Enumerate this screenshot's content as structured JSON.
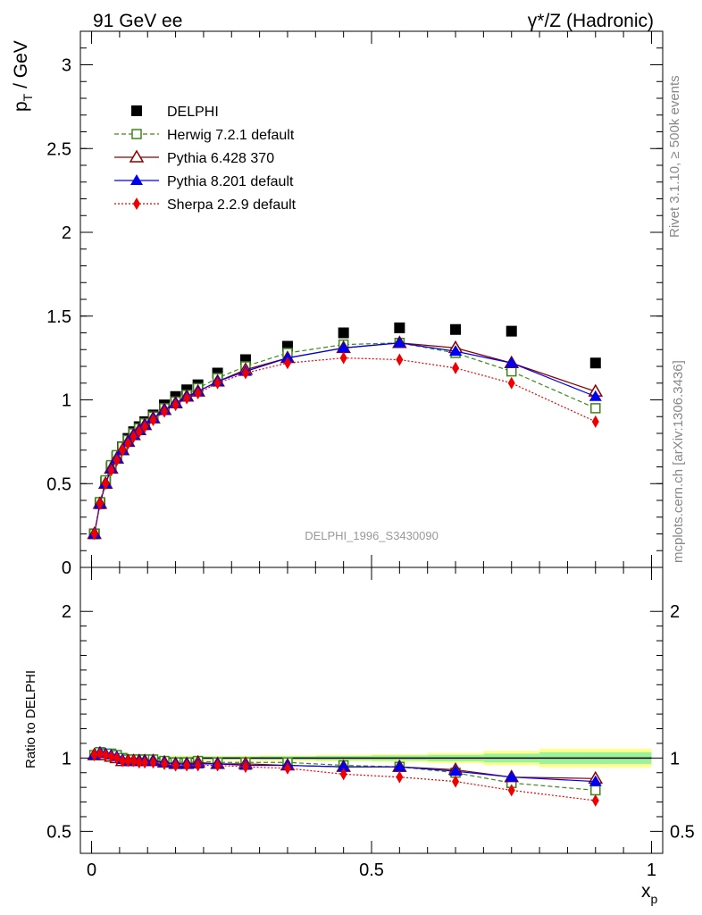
{
  "header": {
    "left": "91 GeV ee",
    "right": "γ*/Z (Hadronic)"
  },
  "side_labels": {
    "rivet": "Rivet 3.1.10, ≥ 500k events",
    "mcplots": "mcplots.cern.ch [arXiv:1306.3436]"
  },
  "analysis_id": "DELPHI_1996_S3430090",
  "chart_data": [
    {
      "type": "scatter",
      "panel": "main",
      "ylabel": "p_T / GeV",
      "xlabel": "x_p",
      "xlim": [
        -0.02,
        1.02
      ],
      "ylim": [
        0,
        3.2
      ],
      "yticks": [
        "0",
        "0.5",
        "1",
        "1.5",
        "2",
        "2.5",
        "3"
      ],
      "xticks": [
        "0",
        "0.5",
        "1"
      ],
      "legend_position": "top-left",
      "x": [
        0.005,
        0.015,
        0.025,
        0.035,
        0.045,
        0.055,
        0.065,
        0.075,
        0.085,
        0.095,
        0.11,
        0.13,
        0.15,
        0.17,
        0.19,
        0.225,
        0.275,
        0.35,
        0.45,
        0.55,
        0.65,
        0.75,
        0.9
      ],
      "series": [
        {
          "name": "DELPHI",
          "color": "#000000",
          "marker": "square-filled",
          "line": "none",
          "values": [
            0.2,
            0.38,
            0.51,
            0.6,
            0.66,
            0.72,
            0.77,
            0.81,
            0.84,
            0.87,
            0.91,
            0.97,
            1.02,
            1.06,
            1.09,
            1.16,
            1.24,
            1.32,
            1.4,
            1.43,
            1.42,
            1.41,
            1.22
          ]
        },
        {
          "name": "Herwig 7.2.1 default",
          "color": "#3a8a17",
          "marker": "square-open",
          "line": "dashed",
          "values": [
            0.2,
            0.39,
            0.52,
            0.61,
            0.67,
            0.72,
            0.76,
            0.8,
            0.83,
            0.86,
            0.9,
            0.95,
            0.99,
            1.03,
            1.07,
            1.13,
            1.2,
            1.28,
            1.33,
            1.34,
            1.28,
            1.17,
            0.95
          ]
        },
        {
          "name": "Pythia 6.428 370",
          "color": "#8b0000",
          "marker": "triangle-open",
          "line": "solid",
          "values": [
            0.2,
            0.38,
            0.5,
            0.59,
            0.65,
            0.7,
            0.75,
            0.79,
            0.82,
            0.85,
            0.89,
            0.94,
            0.98,
            1.02,
            1.05,
            1.11,
            1.18,
            1.25,
            1.31,
            1.34,
            1.31,
            1.22,
            1.05
          ]
        },
        {
          "name": "Pythia 8.201 default",
          "color": "#0000ee",
          "marker": "triangle-filled",
          "line": "solid",
          "values": [
            0.2,
            0.38,
            0.5,
            0.59,
            0.65,
            0.7,
            0.75,
            0.79,
            0.82,
            0.85,
            0.89,
            0.94,
            0.98,
            1.02,
            1.05,
            1.11,
            1.17,
            1.25,
            1.31,
            1.34,
            1.29,
            1.22,
            1.02
          ]
        },
        {
          "name": "Sherpa 2.2.9 default",
          "color": "#ee0000",
          "marker": "diamond-filled",
          "line": "dotted",
          "values": [
            0.2,
            0.38,
            0.5,
            0.58,
            0.64,
            0.7,
            0.74,
            0.78,
            0.81,
            0.84,
            0.88,
            0.93,
            0.97,
            1.01,
            1.04,
            1.1,
            1.16,
            1.22,
            1.25,
            1.24,
            1.19,
            1.1,
            0.87
          ]
        }
      ]
    },
    {
      "type": "scatter",
      "panel": "ratio",
      "ylabel": "Ratio to DELPHI",
      "xlabel": "x_p",
      "xlim": [
        -0.02,
        1.02
      ],
      "ylim": [
        0.35,
        2.3
      ],
      "yticks": [
        "0.5",
        "1",
        "2"
      ],
      "xticks": [
        "0",
        "0.5",
        "1"
      ],
      "x": [
        0.005,
        0.015,
        0.025,
        0.035,
        0.045,
        0.055,
        0.065,
        0.075,
        0.085,
        0.095,
        0.11,
        0.13,
        0.15,
        0.17,
        0.19,
        0.225,
        0.275,
        0.35,
        0.45,
        0.55,
        0.65,
        0.75,
        0.9
      ],
      "band_edges": [
        0,
        0.1,
        0.2,
        0.3,
        0.4,
        0.5,
        0.6,
        0.7,
        0.8,
        1.0
      ],
      "band_inner_halfwidth": [
        0.01,
        0.01,
        0.01,
        0.012,
        0.015,
        0.018,
        0.022,
        0.03,
        0.04
      ],
      "band_outer_halfwidth": [
        0.015,
        0.015,
        0.015,
        0.018,
        0.022,
        0.027,
        0.035,
        0.05,
        0.065
      ],
      "series": [
        {
          "name": "Herwig 7.2.1 default",
          "values": [
            1.02,
            1.04,
            1.03,
            1.03,
            1.02,
            1.0,
            0.99,
            0.99,
            0.99,
            0.99,
            0.99,
            0.98,
            0.97,
            0.97,
            0.98,
            0.97,
            0.97,
            0.97,
            0.95,
            0.94,
            0.9,
            0.83,
            0.78
          ]
        },
        {
          "name": "Pythia 6.428 370",
          "values": [
            1.02,
            1.03,
            1.02,
            1.01,
            1.0,
            0.98,
            0.98,
            0.98,
            0.98,
            0.98,
            0.98,
            0.97,
            0.96,
            0.96,
            0.97,
            0.96,
            0.96,
            0.95,
            0.94,
            0.94,
            0.92,
            0.87,
            0.86
          ]
        },
        {
          "name": "Pythia 8.201 default",
          "values": [
            1.02,
            1.04,
            1.03,
            1.02,
            1.01,
            0.99,
            0.98,
            0.98,
            0.98,
            0.98,
            0.98,
            0.97,
            0.96,
            0.96,
            0.96,
            0.96,
            0.95,
            0.95,
            0.94,
            0.94,
            0.91,
            0.87,
            0.84
          ]
        },
        {
          "name": "Sherpa 2.2.9 default",
          "values": [
            1.02,
            1.03,
            1.02,
            1.01,
            1.0,
            0.98,
            0.98,
            0.98,
            0.97,
            0.97,
            0.97,
            0.96,
            0.95,
            0.95,
            0.95,
            0.95,
            0.94,
            0.93,
            0.89,
            0.87,
            0.84,
            0.78,
            0.71
          ]
        }
      ]
    }
  ]
}
